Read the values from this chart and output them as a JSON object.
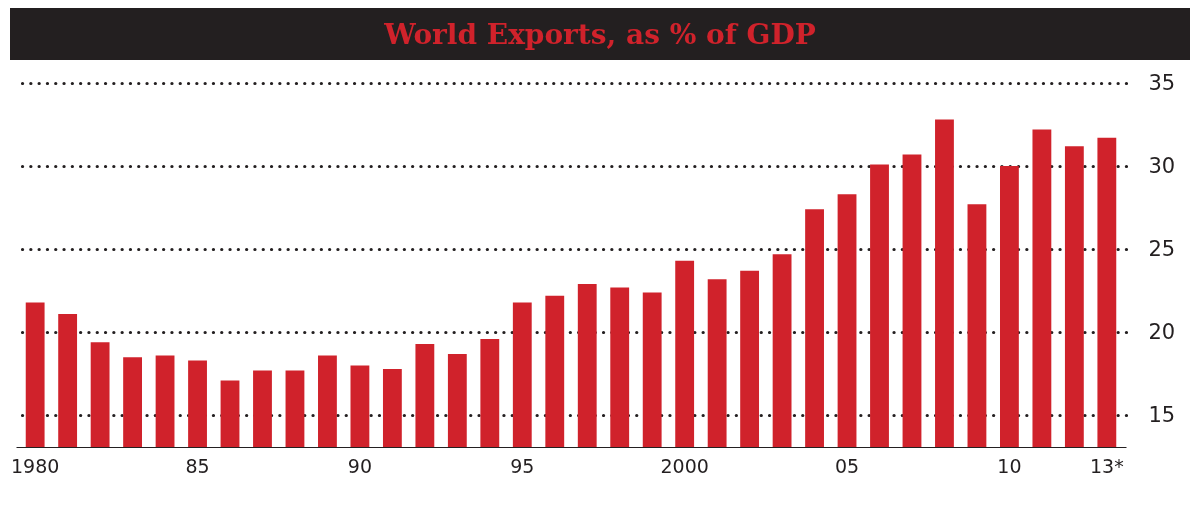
{
  "chart_data": {
    "type": "bar",
    "title": "World Exports, as % of GDP",
    "categories": [
      "1980",
      null,
      null,
      null,
      null,
      "85",
      null,
      null,
      null,
      null,
      "90",
      null,
      null,
      null,
      null,
      "95",
      null,
      null,
      null,
      null,
      "2000",
      null,
      null,
      null,
      null,
      "05",
      null,
      null,
      null,
      null,
      "10",
      null,
      null,
      "13*"
    ],
    "values": [
      21.8,
      21.1,
      19.4,
      18.5,
      18.6,
      18.3,
      17.1,
      17.7,
      17.7,
      18.6,
      18.0,
      17.8,
      19.3,
      18.7,
      19.6,
      21.8,
      22.2,
      22.9,
      22.7,
      22.4,
      24.3,
      23.2,
      23.7,
      24.7,
      27.4,
      28.3,
      30.1,
      30.7,
      32.8,
      27.7,
      30.0,
      32.2,
      31.2,
      31.7
    ],
    "color": "#d0222b",
    "ylim": [
      13.1,
      35
    ],
    "yticks": [
      15,
      20,
      25,
      30,
      35
    ],
    "grid": "y"
  }
}
